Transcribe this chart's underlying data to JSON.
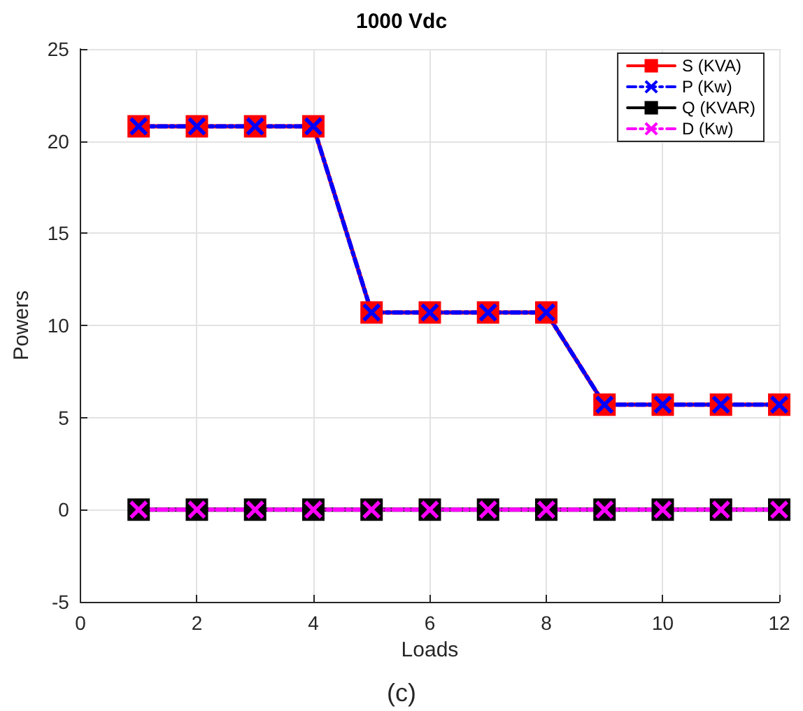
{
  "chart_data": {
    "type": "line",
    "title": "1000 Vdc",
    "xlabel": "Loads",
    "ylabel": "Powers",
    "annotations": [
      "(c)"
    ],
    "x": [
      1,
      2,
      3,
      4,
      5,
      6,
      7,
      8,
      9,
      10,
      11,
      12
    ],
    "series": [
      {
        "name": "S (KVA)",
        "color": "#ff0000",
        "marker": "square",
        "line_style": "solid",
        "values": [
          20.8,
          20.8,
          20.8,
          20.8,
          10.7,
          10.7,
          10.7,
          10.7,
          5.7,
          5.7,
          5.7,
          5.7
        ]
      },
      {
        "name": "P (Kw)",
        "color": "#0000ff",
        "marker": "cross",
        "line_style": "dashed",
        "values": [
          20.8,
          20.8,
          20.8,
          20.8,
          10.7,
          10.7,
          10.7,
          10.7,
          5.7,
          5.7,
          5.7,
          5.7
        ]
      },
      {
        "name": "Q (KVAR)",
        "color": "#000000",
        "marker": "square",
        "line_style": "solid",
        "values": [
          0,
          0,
          0,
          0,
          0,
          0,
          0,
          0,
          0,
          0,
          0,
          0
        ]
      },
      {
        "name": "D (Kw)",
        "color": "#ff00ff",
        "marker": "cross",
        "line_style": "dashed",
        "values": [
          0,
          0,
          0,
          0,
          0,
          0,
          0,
          0,
          0,
          0,
          0,
          0
        ]
      }
    ],
    "xlim": [
      0,
      12
    ],
    "xticks": [
      0,
      2,
      4,
      6,
      8,
      10,
      12
    ],
    "ylim": [
      -5,
      25
    ],
    "yticks": [
      -5,
      0,
      5,
      10,
      15,
      20,
      25
    ],
    "grid": true,
    "legend": "top right"
  }
}
